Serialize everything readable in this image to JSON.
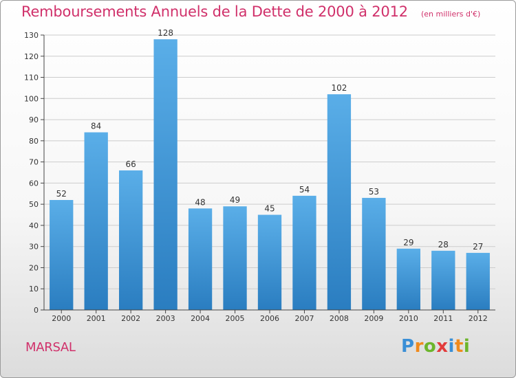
{
  "header": {
    "title": "Remboursements Annuels de la Dette de 2000 à 2012",
    "subtitle": "(en milliers d'€)"
  },
  "footer": {
    "town": "MARSAL",
    "logo_letters": [
      "P",
      "r",
      "o",
      "x",
      "i",
      "t",
      "i"
    ]
  },
  "chart_data": {
    "type": "bar",
    "title": "Remboursements Annuels de la Dette de 2000 à 2012",
    "subtitle": "(en milliers d'€)",
    "xlabel": "",
    "ylabel": "",
    "categories": [
      "2000",
      "2001",
      "2002",
      "2003",
      "2004",
      "2005",
      "2006",
      "2007",
      "2008",
      "2009",
      "2010",
      "2011",
      "2012"
    ],
    "values": [
      52,
      84,
      66,
      128,
      48,
      49,
      45,
      54,
      102,
      53,
      29,
      28,
      27
    ],
    "ylim": [
      0,
      130
    ],
    "yticks": [
      0,
      10,
      20,
      30,
      40,
      50,
      60,
      70,
      80,
      90,
      100,
      110,
      120,
      130
    ],
    "grid": true,
    "legend": "none",
    "bar_color_top": "#5aaee8",
    "bar_color_bottom": "#2a7dc0",
    "grid_color": "#cccccc",
    "axis_color": "#444444"
  }
}
